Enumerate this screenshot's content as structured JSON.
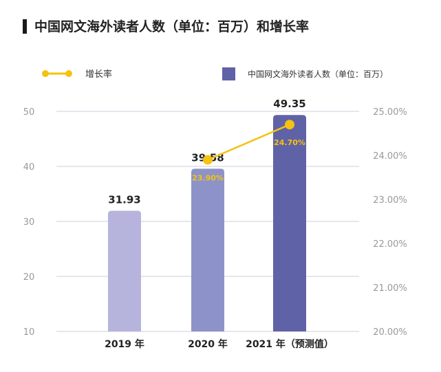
{
  "title": "中国网文海外读者人数（单位：百万）和增长率",
  "legend": {
    "line_label": "增长率",
    "bar_label": "中国网文海外读者人数（单位：百万）"
  },
  "colors": {
    "line": "#F5C211",
    "line_label_text": "#F5C211",
    "bars": [
      "#B6B4DC",
      "#8D93C8",
      "#5F62A6"
    ],
    "grid": "#CCCCDD",
    "axis_text": "#999999"
  },
  "chart_data": {
    "type": "bar",
    "categories": [
      "2019 年",
      "2020 年",
      "2021 年（预测值）"
    ],
    "series": [
      {
        "name": "中国网文海外读者人数（单位：百万）",
        "type": "bar",
        "axis": "left",
        "values": [
          31.93,
          39.58,
          49.35
        ],
        "labels": [
          "31.93",
          "39.58",
          "49.35"
        ]
      },
      {
        "name": "增长率",
        "type": "line",
        "axis": "right",
        "values": [
          null,
          23.9,
          24.7
        ],
        "labels": [
          null,
          "23.90%",
          "24.70%"
        ]
      }
    ],
    "y_left": {
      "ylim": [
        10,
        50
      ],
      "ticks": [
        "10",
        "20",
        "30",
        "40",
        "50"
      ]
    },
    "y_right": {
      "ylim": [
        20,
        25
      ],
      "ticks": [
        "20.00%",
        "21.00%",
        "22.00%",
        "23.00%",
        "24.00%",
        "25.00%"
      ]
    },
    "grid": true,
    "legend_position": "top"
  }
}
